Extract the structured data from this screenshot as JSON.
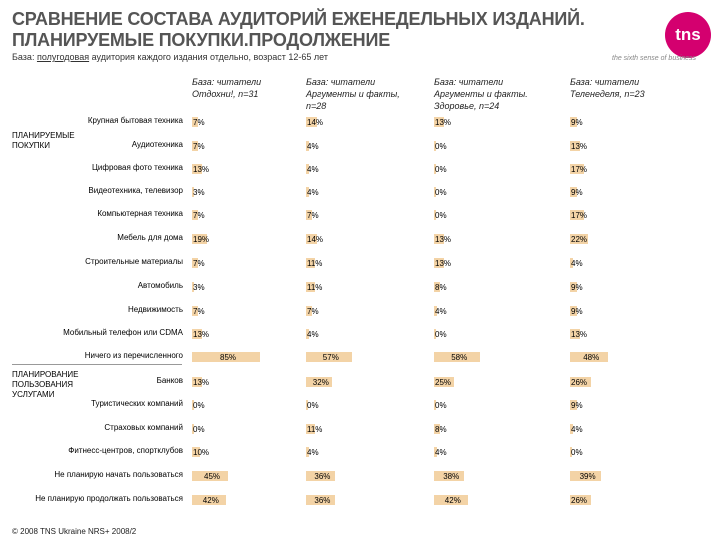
{
  "header": {
    "title_line1": "СРАВНЕНИЕ СОСТАВА АУДИТОРИЙ ЕЖЕНЕДЕЛЬНЫХ ИЗДАНИЙ.",
    "title_line2": "ПЛАНИРУЕМЫЕ ПОКУПКИ.ПРОДОЛЖЕНИЕ",
    "subtitle_prefix": "База: ",
    "subtitle_underlined": "полугодовая",
    "subtitle_rest": " аудитория каждого издания отдельно, возраст 12-65 лет",
    "logo_text": "tns",
    "slogan": "the sixth sense of business"
  },
  "groups": {
    "purchases": [
      "ПЛАНИРУЕМЫЕ",
      "ПОКУПКИ"
    ],
    "services": [
      "ПЛАНИРОВАНИЕ",
      "ПОЛЬЗОВАНИЯ",
      "УСЛУГАМИ"
    ]
  },
  "footer": "© 2008 TNS Ukraine  NRS+ 2008/2",
  "chart_data": {
    "type": "bar",
    "unit": "%",
    "categories": [
      "Крупная бытовая техника",
      "Аудиотехника",
      "Цифровая фото техника",
      "Видеотехника, телевизор",
      "Компьютерная техника",
      "Мебель для дома",
      "Строительные материалы",
      "Автомобиль",
      "Недвижимость",
      "Мобильный телефон или CDMA",
      "Ничего из перечисленного",
      "Банков",
      "Туристических компаний",
      "Страховых компаний",
      "Фитнесс-центров, спортклубов",
      "Не планирую начать пользоваться",
      "Не планирую продолжать пользоваться"
    ],
    "series": [
      {
        "name": [
          "База: читатели",
          "Отдохни!, n=31"
        ],
        "values": [
          7,
          7,
          13,
          3,
          7,
          19,
          7,
          3,
          7,
          13,
          85,
          13,
          0,
          0,
          10,
          45,
          42
        ]
      },
      {
        "name": [
          "База: читатели",
          "Аргументы и факты,",
          "n=28"
        ],
        "values": [
          14,
          4,
          4,
          4,
          7,
          14,
          11,
          11,
          7,
          4,
          57,
          32,
          0,
          11,
          4,
          36,
          36
        ]
      },
      {
        "name": [
          "База: читатели",
          "Аргументы и факты.",
          "Здоровье, n=24"
        ],
        "values": [
          13,
          0,
          0,
          0,
          0,
          13,
          13,
          8,
          4,
          0,
          58,
          25,
          0,
          8,
          4,
          38,
          42
        ]
      },
      {
        "name": [
          "База: читатели",
          "Теленеделя, n=23"
        ],
        "values": [
          9,
          13,
          17,
          9,
          17,
          22,
          4,
          9,
          9,
          13,
          48,
          26,
          9,
          4,
          0,
          39,
          26
        ]
      }
    ]
  }
}
